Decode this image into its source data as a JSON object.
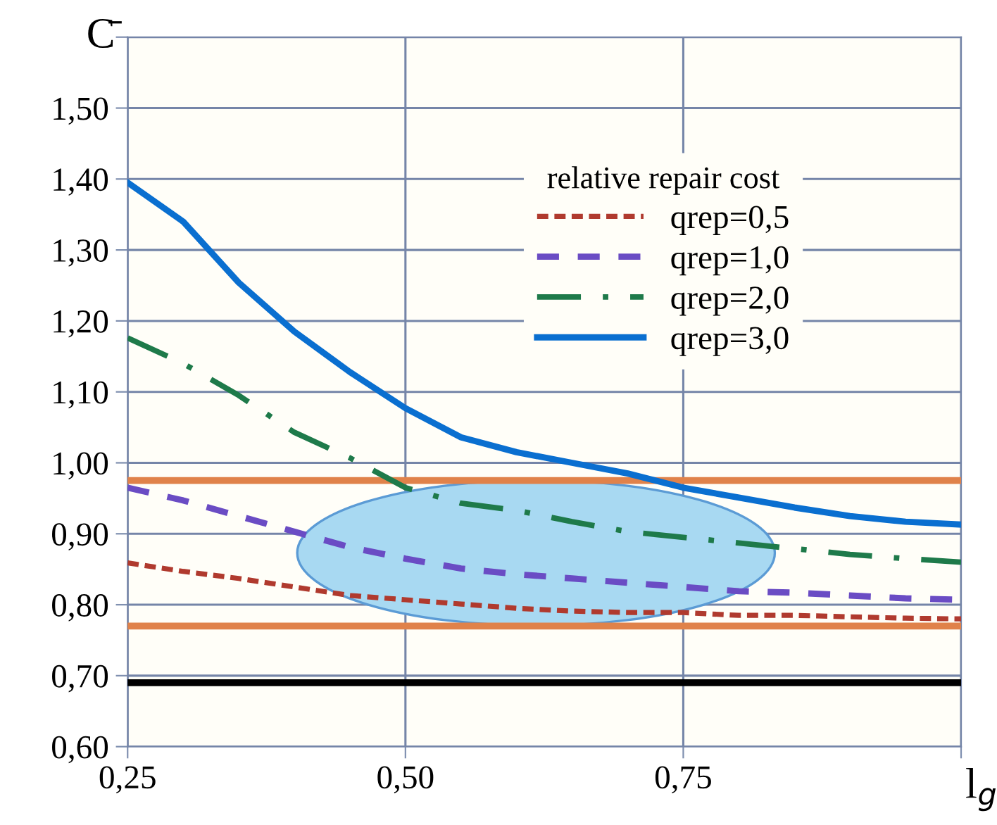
{
  "chart_data": {
    "type": "line",
    "xlabel": "l$_{g}$",
    "ylabel": "C̄",
    "legend_title": "relative repair cost",
    "x": [
      0.25,
      0.3,
      0.35,
      0.4,
      0.45,
      0.5,
      0.55,
      0.6,
      0.65,
      0.7,
      0.75,
      0.8,
      0.85,
      0.9,
      0.95,
      1.0
    ],
    "series": [
      {
        "name": "qrep=0,5",
        "color": "#b03a2e",
        "line_style": "dotted",
        "values": [
          0.859,
          0.847,
          0.837,
          0.825,
          0.813,
          0.807,
          0.801,
          0.795,
          0.791,
          0.789,
          0.789,
          0.785,
          0.785,
          0.783,
          0.781,
          0.78
        ]
      },
      {
        "name": "qrep=1,0",
        "color": "#6a4cc4",
        "line_style": "dashed",
        "values": [
          0.965,
          0.947,
          0.925,
          0.903,
          0.881,
          0.865,
          0.851,
          0.843,
          0.837,
          0.831,
          0.825,
          0.819,
          0.817,
          0.813,
          0.809,
          0.807
        ]
      },
      {
        "name": "qrep=2,0",
        "color": "#1e7a4a",
        "line_style": "dashdot",
        "values": [
          1.176,
          1.14,
          1.095,
          1.043,
          1.007,
          0.965,
          0.943,
          0.933,
          0.917,
          0.903,
          0.895,
          0.887,
          0.879,
          0.871,
          0.865,
          0.86
        ]
      },
      {
        "name": "qrep=3,0",
        "color": "#0a6fd0",
        "line_style": "solid",
        "values": [
          1.395,
          1.34,
          1.254,
          1.185,
          1.128,
          1.077,
          1.036,
          1.015,
          1.0,
          0.985,
          0.965,
          0.951,
          0.937,
          0.925,
          0.917,
          0.913
        ]
      }
    ],
    "ref_lines": [
      {
        "axis": "y",
        "value": 0.975,
        "color": "#e0824a"
      },
      {
        "axis": "y",
        "value": 0.77,
        "color": "#e0824a"
      },
      {
        "axis": "y",
        "value": 0.69,
        "color": "#000000"
      }
    ],
    "xlim": [
      0.25,
      1.0
    ],
    "ylim": [
      0.6,
      1.6
    ],
    "xticks": [
      {
        "value": 0.25,
        "label": "0,25"
      },
      {
        "value": 0.5,
        "label": "0,50"
      },
      {
        "value": 0.75,
        "label": "0,75"
      },
      {
        "value": 1.0,
        "label": null
      }
    ],
    "yticks": [
      {
        "value": 0.6,
        "label": "0,60"
      },
      {
        "value": 0.7,
        "label": "0,70"
      },
      {
        "value": 0.8,
        "label": "0,80"
      },
      {
        "value": 0.9,
        "label": "0,90"
      },
      {
        "value": 1.0,
        "label": "1,00"
      },
      {
        "value": 1.1,
        "label": "1,10"
      },
      {
        "value": 1.2,
        "label": "1,20"
      },
      {
        "value": 1.3,
        "label": "1,30"
      },
      {
        "value": 1.4,
        "label": "1,40"
      },
      {
        "value": 1.5,
        "label": "1,50"
      },
      {
        "value": 1.6,
        "label": null
      }
    ],
    "grid": true,
    "legend": "top right"
  }
}
